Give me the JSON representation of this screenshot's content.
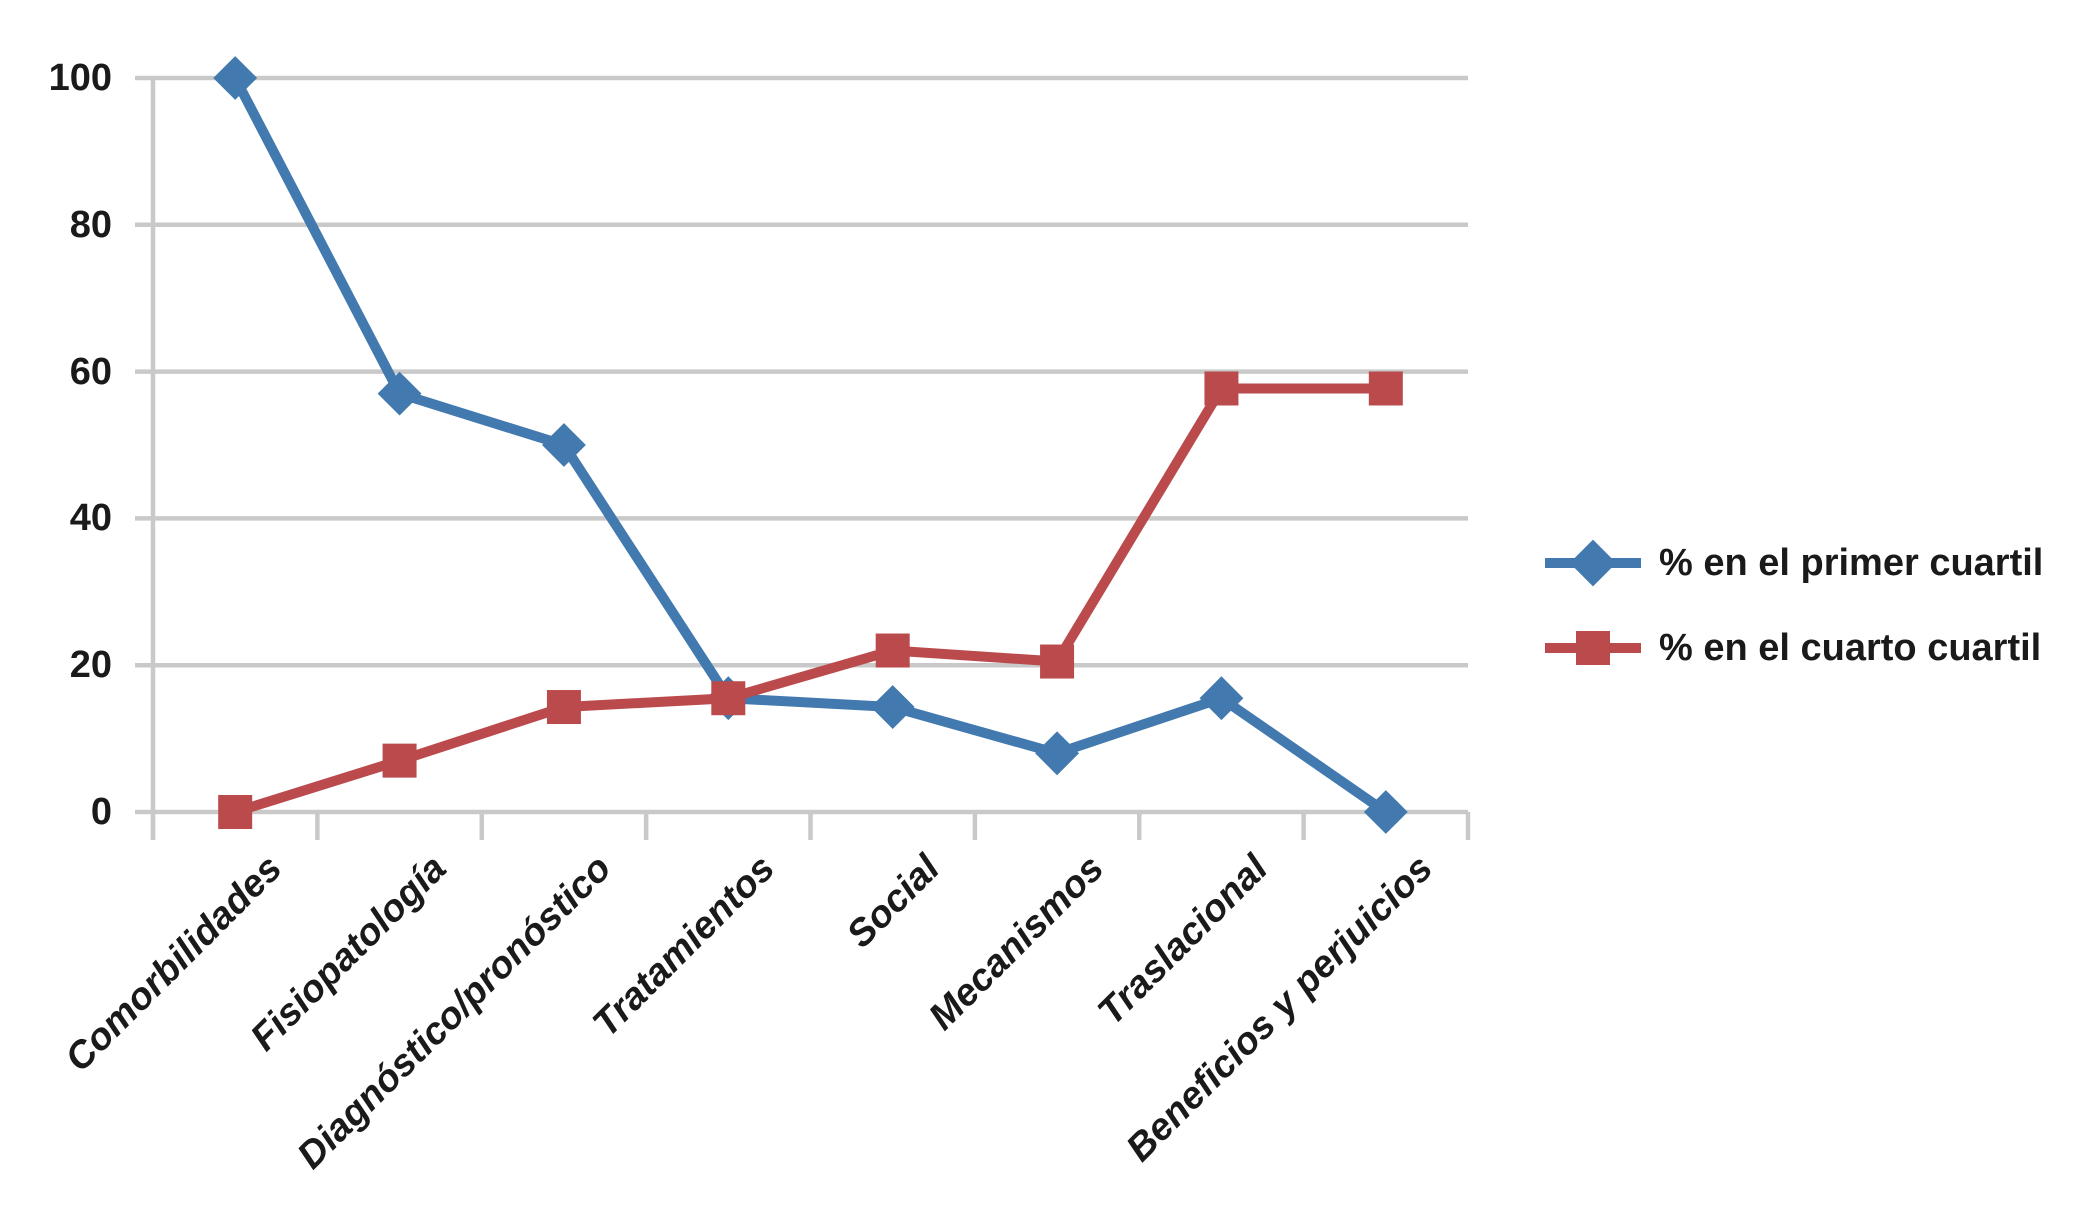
{
  "chart_data": {
    "type": "line",
    "title": "",
    "xlabel": "",
    "ylabel": "",
    "categories": [
      "Comorbilidades",
      "Fisiopatología",
      "Diagnóstico/pronóstico",
      "Tratamientos",
      "Social",
      "Mecanismos",
      "Traslacional",
      "Beneficios y perjuicios"
    ],
    "series": [
      {
        "name": "% en el primer cuartil",
        "marker": "diamond",
        "color": "#4279AE",
        "values": [
          100,
          57,
          50,
          15.5,
          14.3,
          8,
          15.5,
          0
        ]
      },
      {
        "name": "% en el cuarto cuartil",
        "marker": "square",
        "color": "#BB4A4D",
        "values": [
          0,
          7,
          14.3,
          15.5,
          22,
          20.5,
          57.7,
          57.7
        ]
      }
    ],
    "ylim": [
      0,
      100
    ],
    "yticks": [
      0,
      20,
      40,
      60,
      80,
      100
    ],
    "grid": true,
    "legend_position": "right",
    "gridline_color": "#C9C9C9",
    "text_color": "#1A1A1A",
    "background_color": "#FFFFFF"
  }
}
